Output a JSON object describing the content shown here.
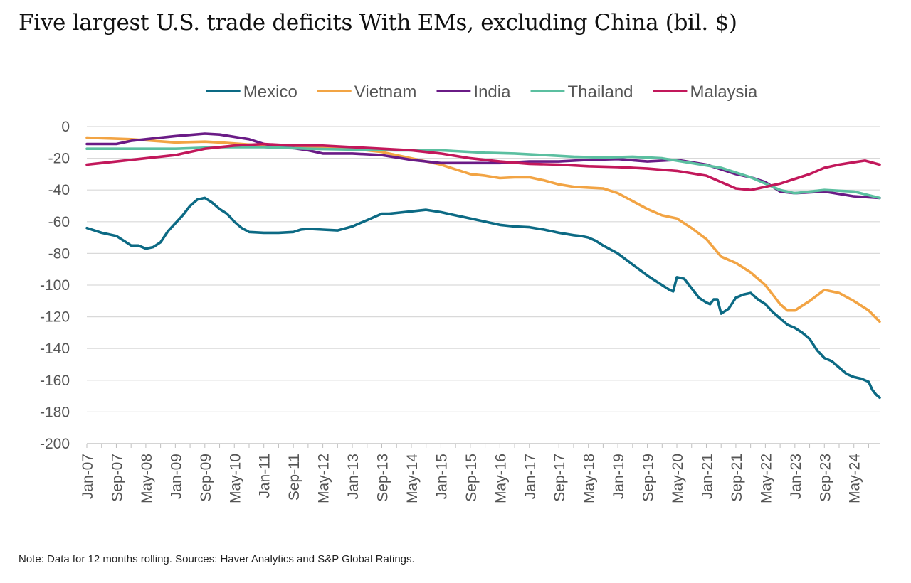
{
  "page": {
    "title": "Five largest U.S. trade deficits With EMs, excluding China (bil. $)",
    "note": "Note: Data for 12 months rolling. Sources: Haver Analytics and S&P Global Ratings."
  },
  "chart_data": {
    "type": "line",
    "title": "Five largest U.S. trade deficits With EMs, excluding China (bil. $)",
    "xlabel": "",
    "ylabel": "",
    "ylim": [
      -200,
      0
    ],
    "yticks": [
      0,
      -20,
      -40,
      -60,
      -80,
      -100,
      -120,
      -140,
      -160,
      -180,
      -200
    ],
    "x_range": [
      "2007-01",
      "2024-12"
    ],
    "x_tick_labels": [
      "Jan-07",
      "Sep-07",
      "May-08",
      "Jan-09",
      "Sep-09",
      "May-10",
      "Jan-11",
      "Sep-11",
      "May-12",
      "Jan-13",
      "Sep-13",
      "May-14",
      "Jan-15",
      "Sep-15",
      "May-16",
      "Jan-17",
      "Sep-17",
      "May-18",
      "Jan-19",
      "Sep-19",
      "May-20",
      "Jan-21",
      "Sep-21",
      "May-22",
      "Jan-23",
      "Sep-23",
      "May-24"
    ],
    "grid": "horizontal",
    "legend_position": "top",
    "series": [
      {
        "name": "Mexico",
        "color": "#0c6a84",
        "points": [
          [
            "2007-01",
            -64
          ],
          [
            "2007-05",
            -67
          ],
          [
            "2007-09",
            -69
          ],
          [
            "2008-01",
            -75
          ],
          [
            "2008-03",
            -75
          ],
          [
            "2008-05",
            -77
          ],
          [
            "2008-07",
            -76
          ],
          [
            "2008-09",
            -73
          ],
          [
            "2008-11",
            -66
          ],
          [
            "2009-01",
            -61
          ],
          [
            "2009-03",
            -56
          ],
          [
            "2009-05",
            -50
          ],
          [
            "2009-07",
            -46
          ],
          [
            "2009-09",
            -45
          ],
          [
            "2009-11",
            -48
          ],
          [
            "2010-01",
            -52
          ],
          [
            "2010-03",
            -55
          ],
          [
            "2010-05",
            -60
          ],
          [
            "2010-07",
            -64
          ],
          [
            "2010-09",
            -66.5
          ],
          [
            "2011-01",
            -67
          ],
          [
            "2011-05",
            -67
          ],
          [
            "2011-09",
            -66.5
          ],
          [
            "2011-11",
            -65
          ],
          [
            "2012-01",
            -64.5
          ],
          [
            "2012-05",
            -65
          ],
          [
            "2012-09",
            -65.5
          ],
          [
            "2013-01",
            -63
          ],
          [
            "2013-03",
            -61
          ],
          [
            "2013-05",
            -59
          ],
          [
            "2013-07",
            -57
          ],
          [
            "2013-09",
            -55
          ],
          [
            "2013-11",
            -55
          ],
          [
            "2014-01",
            -54.5
          ],
          [
            "2014-05",
            -53.5
          ],
          [
            "2014-07",
            -53
          ],
          [
            "2014-09",
            -52.5
          ],
          [
            "2015-01",
            -54
          ],
          [
            "2015-05",
            -56
          ],
          [
            "2015-09",
            -58
          ],
          [
            "2016-01",
            -60
          ],
          [
            "2016-05",
            -62
          ],
          [
            "2016-09",
            -63
          ],
          [
            "2017-01",
            -63.5
          ],
          [
            "2017-05",
            -65
          ],
          [
            "2017-09",
            -67
          ],
          [
            "2018-01",
            -68.5
          ],
          [
            "2018-03",
            -69
          ],
          [
            "2018-05",
            -70
          ],
          [
            "2018-07",
            -72
          ],
          [
            "2018-09",
            -75
          ],
          [
            "2019-01",
            -80
          ],
          [
            "2019-05",
            -87
          ],
          [
            "2019-09",
            -94
          ],
          [
            "2020-01",
            -100
          ],
          [
            "2020-03",
            -103
          ],
          [
            "2020-04",
            -104
          ],
          [
            "2020-05",
            -95
          ],
          [
            "2020-07",
            -96
          ],
          [
            "2020-09",
            -102
          ],
          [
            "2020-11",
            -108
          ],
          [
            "2021-01",
            -111
          ],
          [
            "2021-02",
            -112
          ],
          [
            "2021-03",
            -109
          ],
          [
            "2021-04",
            -109
          ],
          [
            "2021-05",
            -118
          ],
          [
            "2021-07",
            -115
          ],
          [
            "2021-09",
            -108
          ],
          [
            "2021-11",
            -106
          ],
          [
            "2022-01",
            -105
          ],
          [
            "2022-03",
            -109
          ],
          [
            "2022-05",
            -112
          ],
          [
            "2022-07",
            -117
          ],
          [
            "2022-09",
            -121
          ],
          [
            "2022-11",
            -125
          ],
          [
            "2023-01",
            -127
          ],
          [
            "2023-03",
            -130
          ],
          [
            "2023-05",
            -134
          ],
          [
            "2023-07",
            -141
          ],
          [
            "2023-09",
            -146
          ],
          [
            "2023-11",
            -148
          ],
          [
            "2024-01",
            -152
          ],
          [
            "2024-03",
            -156
          ],
          [
            "2024-05",
            -158
          ],
          [
            "2024-07",
            -159
          ],
          [
            "2024-09",
            -161
          ],
          [
            "2024-10",
            -166
          ],
          [
            "2024-11",
            -169
          ],
          [
            "2024-12",
            -171
          ]
        ]
      },
      {
        "name": "Vietnam",
        "color": "#f2a444",
        "points": [
          [
            "2007-01",
            -7
          ],
          [
            "2008-01",
            -8
          ],
          [
            "2009-01",
            -10
          ],
          [
            "2009-09",
            -9.5
          ],
          [
            "2010-01",
            -10
          ],
          [
            "2011-01",
            -12
          ],
          [
            "2012-01",
            -13
          ],
          [
            "2013-01",
            -14
          ],
          [
            "2013-09",
            -16
          ],
          [
            "2014-05",
            -20
          ],
          [
            "2015-01",
            -24
          ],
          [
            "2015-05",
            -27
          ],
          [
            "2015-09",
            -30
          ],
          [
            "2016-01",
            -31
          ],
          [
            "2016-05",
            -32.5
          ],
          [
            "2016-09",
            -32
          ],
          [
            "2017-01",
            -32
          ],
          [
            "2017-05",
            -34
          ],
          [
            "2017-09",
            -36.5
          ],
          [
            "2018-01",
            -38
          ],
          [
            "2018-05",
            -38.5
          ],
          [
            "2018-09",
            -39
          ],
          [
            "2019-01",
            -42
          ],
          [
            "2019-05",
            -47
          ],
          [
            "2019-09",
            -52
          ],
          [
            "2020-01",
            -56
          ],
          [
            "2020-05",
            -58
          ],
          [
            "2020-09",
            -64
          ],
          [
            "2021-01",
            -71
          ],
          [
            "2021-05",
            -82
          ],
          [
            "2021-09",
            -86
          ],
          [
            "2022-01",
            -92
          ],
          [
            "2022-05",
            -100
          ],
          [
            "2022-09",
            -112
          ],
          [
            "2022-11",
            -116
          ],
          [
            "2023-01",
            -116
          ],
          [
            "2023-05",
            -110
          ],
          [
            "2023-09",
            -103
          ],
          [
            "2024-01",
            -105
          ],
          [
            "2024-05",
            -110
          ],
          [
            "2024-09",
            -116
          ],
          [
            "2024-12",
            -123
          ]
        ]
      },
      {
        "name": "India",
        "color": "#6a1b86",
        "points": [
          [
            "2007-01",
            -11
          ],
          [
            "2007-09",
            -11
          ],
          [
            "2008-01",
            -9
          ],
          [
            "2008-09",
            -7
          ],
          [
            "2009-01",
            -6
          ],
          [
            "2009-09",
            -4.5
          ],
          [
            "2010-01",
            -5
          ],
          [
            "2010-09",
            -8
          ],
          [
            "2011-01",
            -11
          ],
          [
            "2012-01",
            -15
          ],
          [
            "2012-05",
            -17
          ],
          [
            "2013-01",
            -17
          ],
          [
            "2013-09",
            -18
          ],
          [
            "2014-05",
            -21
          ],
          [
            "2015-01",
            -23
          ],
          [
            "2015-09",
            -23
          ],
          [
            "2016-05",
            -23
          ],
          [
            "2017-01",
            -22
          ],
          [
            "2017-09",
            -22
          ],
          [
            "2018-05",
            -21
          ],
          [
            "2019-01",
            -20.5
          ],
          [
            "2019-09",
            -22
          ],
          [
            "2020-05",
            -21
          ],
          [
            "2021-01",
            -24
          ],
          [
            "2021-09",
            -30
          ],
          [
            "2022-01",
            -32
          ],
          [
            "2022-05",
            -35
          ],
          [
            "2022-09",
            -41
          ],
          [
            "2023-01",
            -42
          ],
          [
            "2023-09",
            -41
          ],
          [
            "2024-05",
            -44
          ],
          [
            "2024-12",
            -45
          ]
        ]
      },
      {
        "name": "Thailand",
        "color": "#5bbfa0",
        "points": [
          [
            "2007-01",
            -14
          ],
          [
            "2008-01",
            -14
          ],
          [
            "2009-01",
            -14
          ],
          [
            "2010-01",
            -13
          ],
          [
            "2011-01",
            -13
          ],
          [
            "2012-01",
            -14
          ],
          [
            "2013-01",
            -14.5
          ],
          [
            "2014-01",
            -15
          ],
          [
            "2015-01",
            -15
          ],
          [
            "2016-01",
            -16.5
          ],
          [
            "2016-09",
            -17
          ],
          [
            "2017-05",
            -18
          ],
          [
            "2018-01",
            -19
          ],
          [
            "2018-09",
            -19.5
          ],
          [
            "2019-05",
            -19
          ],
          [
            "2020-01",
            -20
          ],
          [
            "2020-09",
            -23
          ],
          [
            "2021-05",
            -26
          ],
          [
            "2022-01",
            -32
          ],
          [
            "2022-09",
            -40
          ],
          [
            "2023-01",
            -42
          ],
          [
            "2023-09",
            -40
          ],
          [
            "2024-05",
            -41
          ],
          [
            "2024-12",
            -45
          ]
        ]
      },
      {
        "name": "Malaysia",
        "color": "#c2185b",
        "points": [
          [
            "2007-01",
            -24
          ],
          [
            "2007-09",
            -22
          ],
          [
            "2008-05",
            -20
          ],
          [
            "2009-01",
            -18
          ],
          [
            "2009-09",
            -14
          ],
          [
            "2010-05",
            -12
          ],
          [
            "2011-01",
            -11
          ],
          [
            "2011-09",
            -12
          ],
          [
            "2012-05",
            -12
          ],
          [
            "2013-01",
            -13
          ],
          [
            "2013-09",
            -14
          ],
          [
            "2014-05",
            -15
          ],
          [
            "2015-01",
            -17
          ],
          [
            "2015-09",
            -20
          ],
          [
            "2016-05",
            -22
          ],
          [
            "2017-01",
            -23.5
          ],
          [
            "2017-09",
            -24
          ],
          [
            "2018-05",
            -25
          ],
          [
            "2019-01",
            -25.5
          ],
          [
            "2019-09",
            -26.5
          ],
          [
            "2020-05",
            -28
          ],
          [
            "2021-01",
            -31
          ],
          [
            "2021-05",
            -35
          ],
          [
            "2021-09",
            -39
          ],
          [
            "2022-01",
            -40
          ],
          [
            "2022-05",
            -38
          ],
          [
            "2022-09",
            -36
          ],
          [
            "2023-01",
            -33
          ],
          [
            "2023-05",
            -30
          ],
          [
            "2023-09",
            -26
          ],
          [
            "2024-01",
            -24
          ],
          [
            "2024-05",
            -22.5
          ],
          [
            "2024-08",
            -21.5
          ],
          [
            "2024-12",
            -24
          ]
        ]
      }
    ]
  }
}
